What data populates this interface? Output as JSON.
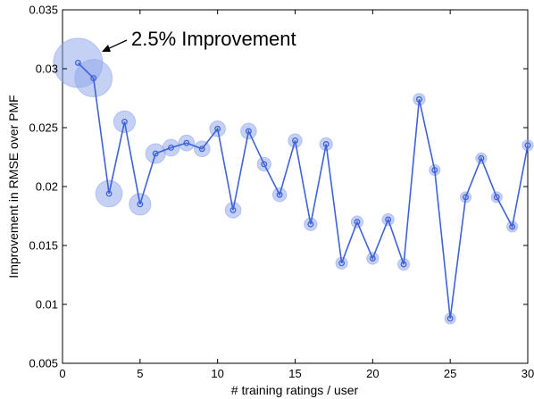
{
  "chart_data": {
    "type": "line",
    "xlabel": "# training ratings / user",
    "ylabel": "Improvement in RMSE over PMF",
    "xlim": [
      0,
      30
    ],
    "ylim": [
      0.005,
      0.035
    ],
    "xticks": [
      0,
      5,
      10,
      15,
      20,
      25,
      30
    ],
    "yticks": [
      0.005,
      0.01,
      0.015,
      0.02,
      0.025,
      0.03,
      0.035
    ],
    "xtick_labels": [
      "0",
      "5",
      "10",
      "15",
      "20",
      "25",
      "30"
    ],
    "ytick_labels": [
      "0.005",
      "0.01",
      "0.015",
      "0.02",
      "0.025",
      "0.03",
      "0.035"
    ],
    "grid": false,
    "annotation": "2.5% Improvement",
    "color": "#3f63d6",
    "bubble_color": "#8ca3ea",
    "x": [
      1,
      2,
      3,
      4,
      5,
      6,
      7,
      8,
      9,
      10,
      11,
      12,
      13,
      14,
      15,
      16,
      17,
      18,
      19,
      20,
      21,
      22,
      23,
      24,
      25,
      26,
      27,
      28,
      29,
      30
    ],
    "y": [
      0.0305,
      0.0292,
      0.0194,
      0.0255,
      0.0185,
      0.0228,
      0.0233,
      0.0237,
      0.0232,
      0.0249,
      0.018,
      0.0247,
      0.0219,
      0.0193,
      0.0239,
      0.0168,
      0.0236,
      0.0135,
      0.017,
      0.0139,
      0.0172,
      0.0134,
      0.0274,
      0.0214,
      0.0088,
      0.0191,
      0.0224,
      0.0191,
      0.0166,
      0.0235
    ],
    "bubble_size": [
      2.5,
      1.9,
      1.35,
      1.1,
      1.1,
      1.0,
      0.85,
      0.8,
      0.8,
      0.8,
      0.8,
      0.8,
      0.7,
      0.7,
      0.7,
      0.65,
      0.65,
      0.6,
      0.6,
      0.6,
      0.6,
      0.6,
      0.6,
      0.55,
      0.55,
      0.55,
      0.55,
      0.55,
      0.55,
      0.55
    ]
  }
}
